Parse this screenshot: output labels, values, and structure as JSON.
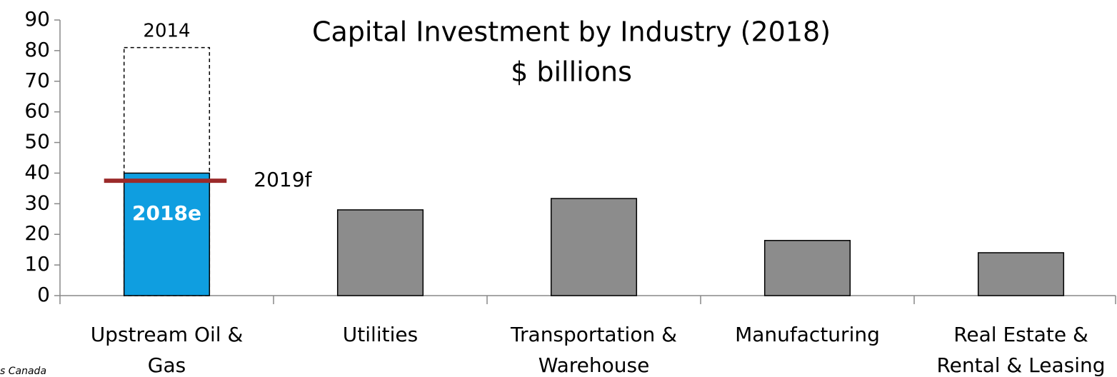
{
  "chart_data": {
    "type": "bar",
    "title": "Capital Investment by Industry (2018)",
    "subtitle": "$ billions",
    "categories": [
      "Upstream Oil &\nGas",
      "Utilities",
      "Transportation &\nWarehouse",
      "Manufacturing",
      "Real Estate &\nRental & Leasing"
    ],
    "series": [
      {
        "name": "2018e",
        "colors": [
          "#0f9ee0",
          "#8c8c8c",
          "#8c8c8c",
          "#8c8c8c",
          "#8c8c8c"
        ],
        "values": [
          40,
          28,
          31.7,
          18,
          14
        ]
      }
    ],
    "reference": {
      "name": "2014",
      "category": 0,
      "value": 81
    },
    "forecast": {
      "name": "2019f",
      "category": 0,
      "value": 37.5,
      "color": "#9b2a2a"
    },
    "ylim": [
      0,
      90
    ],
    "yticks": [
      0,
      10,
      20,
      30,
      40,
      50,
      60,
      70,
      80,
      90
    ],
    "source": "s Canada"
  }
}
